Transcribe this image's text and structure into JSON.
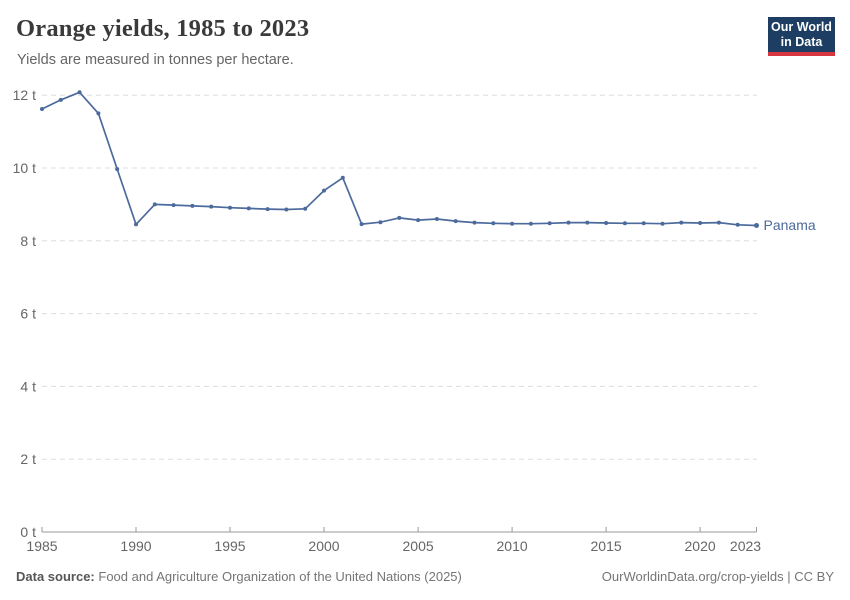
{
  "header": {
    "title": "Orange yields, 1985 to 2023",
    "subtitle": "Yields are measured in tonnes per hectare."
  },
  "logo": {
    "line1": "Our World",
    "line2": "in Data",
    "bg_color": "#1d3d63",
    "bar_color": "#d8353f"
  },
  "footer": {
    "source_label": "Data source:",
    "source_text": "Food and Agriculture Organization of the United Nations (2025)",
    "link": "OurWorldinData.org/crop-yields",
    "separator": "|",
    "license": "CC BY"
  },
  "chart_data": {
    "type": "line",
    "title": "Orange yields, 1985 to 2023",
    "subtitle": "Yields are measured in tonnes per hectare.",
    "xlabel": "",
    "ylabel": "tonnes per hectare",
    "xlim": [
      1985,
      2023
    ],
    "ylim": [
      0,
      12
    ],
    "xticks": [
      1985,
      1990,
      1995,
      2000,
      2005,
      2010,
      2015,
      2020,
      2023
    ],
    "yticks": [
      0,
      2,
      4,
      6,
      8,
      10,
      12
    ],
    "ytick_suffix": " t",
    "grid": "horizontal-dashed",
    "legend_position": "end-of-line-label",
    "colors": {
      "grid": "#dddddd",
      "axis": "#999999",
      "tick_label": "#666666"
    },
    "series": [
      {
        "name": "Panama",
        "color": "#4C6A9C",
        "x": [
          1985,
          1986,
          1987,
          1988,
          1989,
          1990,
          1991,
          1992,
          1993,
          1994,
          1995,
          1996,
          1997,
          1998,
          1999,
          2000,
          2001,
          2002,
          2003,
          2004,
          2005,
          2006,
          2007,
          2008,
          2009,
          2010,
          2011,
          2012,
          2013,
          2014,
          2015,
          2016,
          2017,
          2018,
          2019,
          2020,
          2021,
          2022,
          2023
        ],
        "values": [
          11.62,
          11.87,
          12.08,
          11.5,
          9.97,
          8.45,
          9.0,
          8.98,
          8.96,
          8.94,
          8.91,
          8.89,
          8.87,
          8.86,
          8.88,
          9.38,
          9.73,
          8.46,
          8.51,
          8.63,
          8.57,
          8.6,
          8.54,
          8.5,
          8.48,
          8.47,
          8.47,
          8.48,
          8.5,
          8.5,
          8.49,
          8.48,
          8.48,
          8.47,
          8.5,
          8.49,
          8.5,
          8.44,
          8.42
        ]
      }
    ]
  }
}
